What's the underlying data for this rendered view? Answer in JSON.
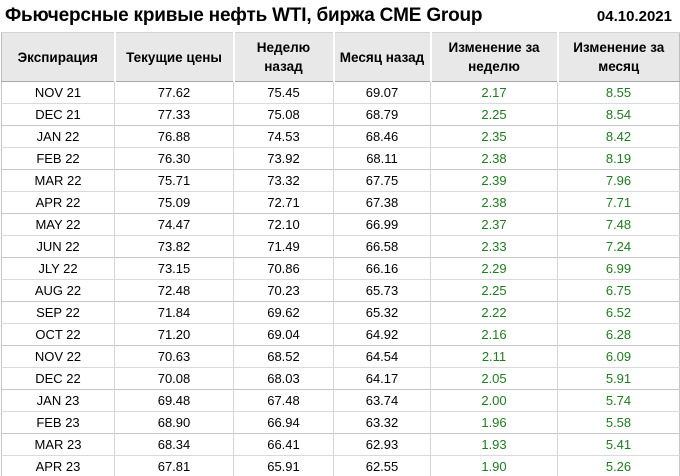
{
  "header": {
    "title": "Фьючерсные кривые нефть WTI, биржа CME Group",
    "date": "04.10.2021"
  },
  "colors": {
    "positive_change": "#1e7d1e",
    "header_bg": "#e8e8e8",
    "table_border": "#bdbdbd",
    "text": "#000000"
  },
  "table": {
    "columns": [
      "Экспирация",
      "Текущие цены",
      "Неделю назад",
      "Месяц назад",
      "Изменение за неделю",
      "Изменение за месяц"
    ],
    "rows": [
      [
        "NOV 21",
        "77.62",
        "75.45",
        "69.07",
        "2.17",
        "8.55"
      ],
      [
        "DEC 21",
        "77.33",
        "75.08",
        "68.79",
        "2.25",
        "8.54"
      ],
      [
        "JAN 22",
        "76.88",
        "74.53",
        "68.46",
        "2.35",
        "8.42"
      ],
      [
        "FEB 22",
        "76.30",
        "73.92",
        "68.11",
        "2.38",
        "8.19"
      ],
      [
        "MAR 22",
        "75.71",
        "73.32",
        "67.75",
        "2.39",
        "7.96"
      ],
      [
        "APR 22",
        "75.09",
        "72.71",
        "67.38",
        "2.38",
        "7.71"
      ],
      [
        "MAY 22",
        "74.47",
        "72.10",
        "66.99",
        "2.37",
        "7.48"
      ],
      [
        "JUN 22",
        "73.82",
        "71.49",
        "66.58",
        "2.33",
        "7.24"
      ],
      [
        "JLY 22",
        "73.15",
        "70.86",
        "66.16",
        "2.29",
        "6.99"
      ],
      [
        "AUG 22",
        "72.48",
        "70.23",
        "65.73",
        "2.25",
        "6.75"
      ],
      [
        "SEP 22",
        "71.84",
        "69.62",
        "65.32",
        "2.22",
        "6.52"
      ],
      [
        "OCT 22",
        "71.20",
        "69.04",
        "64.92",
        "2.16",
        "6.28"
      ],
      [
        "NOV 22",
        "70.63",
        "68.52",
        "64.54",
        "2.11",
        "6.09"
      ],
      [
        "DEC 22",
        "70.08",
        "68.03",
        "64.17",
        "2.05",
        "5.91"
      ],
      [
        "JAN 23",
        "69.48",
        "67.48",
        "63.74",
        "2.00",
        "5.74"
      ],
      [
        "FEB 23",
        "68.90",
        "66.94",
        "63.32",
        "1.96",
        "5.58"
      ],
      [
        "MAR 23",
        "68.34",
        "66.41",
        "62.93",
        "1.93",
        "5.41"
      ],
      [
        "APR 23",
        "67.81",
        "65.91",
        "62.55",
        "1.90",
        "5.26"
      ]
    ]
  }
}
